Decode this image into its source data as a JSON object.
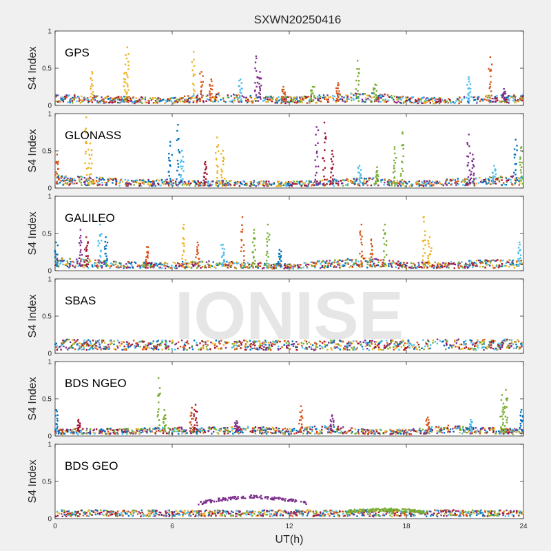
{
  "chart_data": {
    "type": "scatter",
    "title": "SXWN20250416",
    "xlabel": "UT(h)",
    "ylabel": "S4 Index",
    "xlim": [
      0,
      24
    ],
    "ylim": [
      0,
      1
    ],
    "xticks": [
      "0",
      "6",
      "12",
      "18",
      "24"
    ],
    "yticks": [
      "0",
      "0.5",
      "1"
    ],
    "watermark": "IONISE",
    "grid": false,
    "colors": [
      "#0072bd",
      "#d95319",
      "#edb120",
      "#7e2f8e",
      "#77ac30",
      "#4dbeee",
      "#a2142f"
    ],
    "panels": [
      {
        "label": "GPS",
        "baseline": [
          [
            0,
            0.1
          ],
          [
            2,
            0.09
          ],
          [
            4,
            0.08
          ],
          [
            6,
            0.07
          ],
          [
            8,
            0.12
          ],
          [
            10,
            0.09
          ],
          [
            12,
            0.08
          ],
          [
            14,
            0.1
          ],
          [
            16,
            0.12
          ],
          [
            18,
            0.08
          ],
          [
            20,
            0.07
          ],
          [
            22,
            0.09
          ],
          [
            24,
            0.1
          ]
        ],
        "spikes": [
          {
            "x": 1.9,
            "peak": 0.45,
            "series": 2
          },
          {
            "x": 3.6,
            "peak": 0.55,
            "series": 2
          },
          {
            "x": 3.7,
            "peak": 0.78,
            "series": 2
          },
          {
            "x": 7.1,
            "peak": 0.72,
            "series": 2
          },
          {
            "x": 7.5,
            "peak": 0.45,
            "series": 1
          },
          {
            "x": 8.0,
            "peak": 0.35,
            "series": 1
          },
          {
            "x": 9.5,
            "peak": 0.35,
            "series": 5
          },
          {
            "x": 10.3,
            "peak": 0.66,
            "series": 3
          },
          {
            "x": 10.5,
            "peak": 0.45,
            "series": 3
          },
          {
            "x": 11.7,
            "peak": 0.25,
            "series": 1
          },
          {
            "x": 13.2,
            "peak": 0.25,
            "series": 4
          },
          {
            "x": 14.5,
            "peak": 0.3,
            "series": 1
          },
          {
            "x": 15.5,
            "peak": 0.6,
            "series": 4
          },
          {
            "x": 16.4,
            "peak": 0.28,
            "series": 4
          },
          {
            "x": 21.2,
            "peak": 0.38,
            "series": 5
          },
          {
            "x": 22.3,
            "peak": 0.65,
            "series": 1
          },
          {
            "x": 23.0,
            "peak": 0.22,
            "series": 3
          }
        ]
      },
      {
        "label": "GLONASS",
        "baseline": [
          [
            0,
            0.12
          ],
          [
            2,
            0.1
          ],
          [
            4,
            0.08
          ],
          [
            6,
            0.08
          ],
          [
            8,
            0.07
          ],
          [
            10,
            0.07
          ],
          [
            12,
            0.06
          ],
          [
            14,
            0.08
          ],
          [
            16,
            0.1
          ],
          [
            18,
            0.06
          ],
          [
            20,
            0.08
          ],
          [
            22,
            0.1
          ],
          [
            24,
            0.12
          ]
        ],
        "spikes": [
          {
            "x": 0.1,
            "peak": 0.45,
            "series": 1
          },
          {
            "x": 1.6,
            "peak": 0.95,
            "series": 2
          },
          {
            "x": 1.8,
            "peak": 0.6,
            "series": 2
          },
          {
            "x": 5.9,
            "peak": 0.62,
            "series": 0
          },
          {
            "x": 6.3,
            "peak": 0.85,
            "series": 0
          },
          {
            "x": 6.5,
            "peak": 0.5,
            "series": 5
          },
          {
            "x": 7.7,
            "peak": 0.35,
            "series": 6
          },
          {
            "x": 8.3,
            "peak": 0.68,
            "series": 2
          },
          {
            "x": 8.6,
            "peak": 0.5,
            "series": 2
          },
          {
            "x": 13.4,
            "peak": 0.82,
            "series": 3
          },
          {
            "x": 13.8,
            "peak": 0.88,
            "series": 6
          },
          {
            "x": 14.2,
            "peak": 0.5,
            "series": 6
          },
          {
            "x": 15.6,
            "peak": 0.3,
            "series": 5
          },
          {
            "x": 16.5,
            "peak": 0.28,
            "series": 4
          },
          {
            "x": 17.4,
            "peak": 0.55,
            "series": 4
          },
          {
            "x": 17.8,
            "peak": 0.75,
            "series": 4
          },
          {
            "x": 21.2,
            "peak": 0.72,
            "series": 3
          },
          {
            "x": 21.4,
            "peak": 0.45,
            "series": 3
          },
          {
            "x": 22.5,
            "peak": 0.3,
            "series": 5
          },
          {
            "x": 23.6,
            "peak": 0.65,
            "series": 0
          },
          {
            "x": 23.9,
            "peak": 0.55,
            "series": 4
          }
        ]
      },
      {
        "label": "GALILEO",
        "baseline": [
          [
            0,
            0.12
          ],
          [
            2,
            0.1
          ],
          [
            4,
            0.08
          ],
          [
            6,
            0.08
          ],
          [
            8,
            0.09
          ],
          [
            10,
            0.08
          ],
          [
            12,
            0.06
          ],
          [
            14,
            0.1
          ],
          [
            16,
            0.12
          ],
          [
            18,
            0.08
          ],
          [
            20,
            0.08
          ],
          [
            22,
            0.1
          ],
          [
            24,
            0.1
          ]
        ],
        "spikes": [
          {
            "x": 0.05,
            "peak": 0.38,
            "series": 0
          },
          {
            "x": 1.3,
            "peak": 0.55,
            "series": 3
          },
          {
            "x": 1.6,
            "peak": 0.45,
            "series": 6
          },
          {
            "x": 2.3,
            "peak": 0.62,
            "series": 5
          },
          {
            "x": 2.6,
            "peak": 0.45,
            "series": 0
          },
          {
            "x": 4.7,
            "peak": 0.32,
            "series": 1
          },
          {
            "x": 6.6,
            "peak": 0.62,
            "series": 2
          },
          {
            "x": 7.3,
            "peak": 0.38,
            "series": 1
          },
          {
            "x": 8.6,
            "peak": 0.35,
            "series": 5
          },
          {
            "x": 9.6,
            "peak": 0.72,
            "series": 1
          },
          {
            "x": 10.2,
            "peak": 0.55,
            "series": 4
          },
          {
            "x": 10.9,
            "peak": 0.62,
            "series": 4
          },
          {
            "x": 11.5,
            "peak": 0.28,
            "series": 0
          },
          {
            "x": 15.7,
            "peak": 0.62,
            "series": 1
          },
          {
            "x": 16.2,
            "peak": 0.42,
            "series": 1
          },
          {
            "x": 16.9,
            "peak": 0.62,
            "series": 4
          },
          {
            "x": 18.9,
            "peak": 0.72,
            "series": 2
          },
          {
            "x": 19.2,
            "peak": 0.45,
            "series": 2
          },
          {
            "x": 23.8,
            "peak": 0.38,
            "series": 5
          }
        ]
      },
      {
        "label": "SBAS",
        "baseline": [
          [
            0,
            0.13
          ],
          [
            4,
            0.12
          ],
          [
            8,
            0.12
          ],
          [
            12,
            0.12
          ],
          [
            16,
            0.12
          ],
          [
            20,
            0.13
          ],
          [
            24,
            0.13
          ]
        ],
        "spikes": []
      },
      {
        "label": "BDS NGEO",
        "baseline": [
          [
            0,
            0.06
          ],
          [
            2,
            0.07
          ],
          [
            4,
            0.07
          ],
          [
            6,
            0.08
          ],
          [
            8,
            0.08
          ],
          [
            10,
            0.09
          ],
          [
            12,
            0.07
          ],
          [
            14,
            0.1
          ],
          [
            16,
            0.06
          ],
          [
            18,
            0.06
          ],
          [
            20,
            0.1
          ],
          [
            22,
            0.08
          ],
          [
            24,
            0.06
          ]
        ],
        "spikes": [
          {
            "x": 0.05,
            "peak": 0.35,
            "series": 0
          },
          {
            "x": 1.2,
            "peak": 0.22,
            "series": 6
          },
          {
            "x": 5.3,
            "peak": 0.78,
            "series": 4
          },
          {
            "x": 5.6,
            "peak": 0.35,
            "series": 4
          },
          {
            "x": 7.0,
            "peak": 0.38,
            "series": 1
          },
          {
            "x": 7.2,
            "peak": 0.42,
            "series": 6
          },
          {
            "x": 9.3,
            "peak": 0.2,
            "series": 3
          },
          {
            "x": 12.6,
            "peak": 0.4,
            "series": 1
          },
          {
            "x": 14.2,
            "peak": 0.28,
            "series": 3
          },
          {
            "x": 19.1,
            "peak": 0.25,
            "series": 1
          },
          {
            "x": 21.3,
            "peak": 0.22,
            "series": 5
          },
          {
            "x": 22.9,
            "peak": 0.55,
            "series": 4
          },
          {
            "x": 23.1,
            "peak": 0.62,
            "series": 4
          },
          {
            "x": 23.9,
            "peak": 0.35,
            "series": 0
          }
        ]
      },
      {
        "label": "BDS GEO",
        "baseline": [
          [
            0,
            0.08
          ],
          [
            6,
            0.08
          ],
          [
            12,
            0.08
          ],
          [
            18,
            0.08
          ],
          [
            24,
            0.08
          ]
        ],
        "spikes": [],
        "arcs": [
          {
            "series": 3,
            "points": [
              [
                7.3,
                0.2
              ],
              [
                8,
                0.24
              ],
              [
                9,
                0.27
              ],
              [
                10,
                0.3
              ],
              [
                11,
                0.28
              ],
              [
                12,
                0.25
              ],
              [
                13,
                0.2
              ]
            ]
          },
          {
            "series": 4,
            "points": [
              [
                15,
                0.1
              ],
              [
                16,
                0.11
              ],
              [
                17,
                0.12
              ],
              [
                18,
                0.11
              ],
              [
                19,
                0.09
              ]
            ]
          }
        ]
      }
    ]
  }
}
